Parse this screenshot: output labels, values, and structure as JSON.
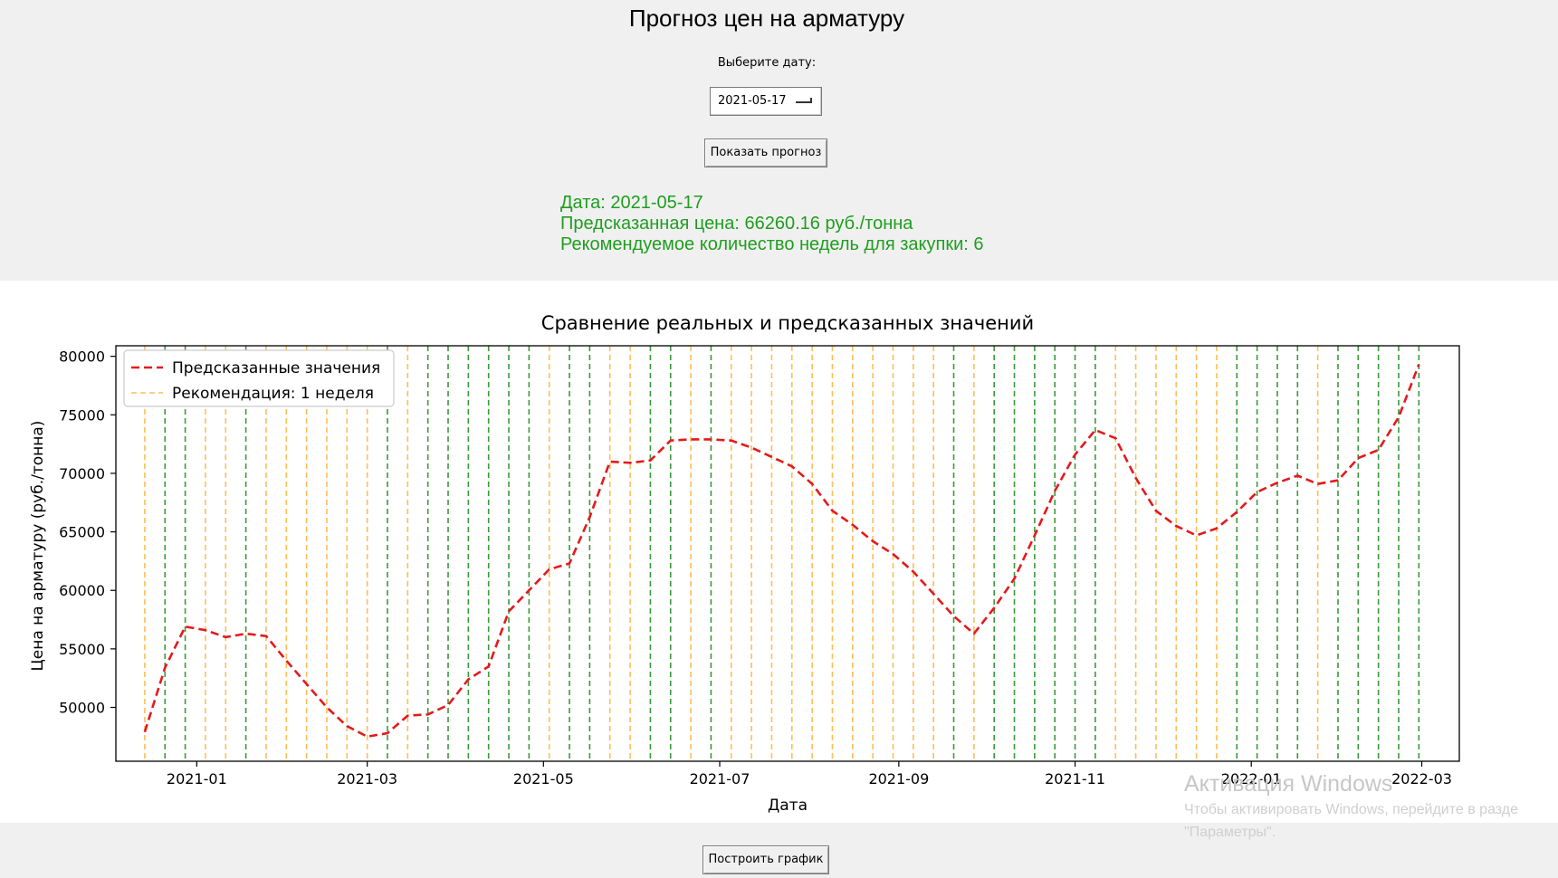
{
  "window": {
    "title": "Прогноз цен на арматуру"
  },
  "form": {
    "date_label": "Выберите дату:",
    "date_value": "2021-05-17",
    "show_button": "Показать прогноз"
  },
  "result": {
    "date_line": "Дата: 2021-05-17",
    "price_line": "Предсказанная цена: 66260.16 руб./тонна",
    "weeks_line": "Рекомендуемое количество недель для закупки: 6",
    "color": "#1f9e1f"
  },
  "footer": {
    "build_button": "Построить график"
  },
  "watermark": {
    "title": "Активация Windows",
    "line1": "Чтобы активировать Windows, перейдите в разде",
    "line2": "\"Параметры\"."
  },
  "chart_data": {
    "type": "line",
    "title": "Сравнение реальных и предсказанных значений",
    "xlabel": "Дата",
    "ylabel": "Цена на арматуру (руб./тонна)",
    "xlim": [
      "2020-12-04",
      "2022-03-14"
    ],
    "ylim": [
      45400,
      80900
    ],
    "x_ticks": [
      "2021-01",
      "2021-03",
      "2021-05",
      "2021-07",
      "2021-09",
      "2021-11",
      "2022-01",
      "2022-03"
    ],
    "y_ticks": [
      50000,
      55000,
      60000,
      65000,
      70000,
      75000,
      80000
    ],
    "legend_position": "upper-left",
    "series": [
      {
        "name": "Предсказанные значения",
        "color": "#e31a1c",
        "style": "dashed",
        "x": [
          "2020-12-14",
          "2020-12-21",
          "2020-12-28",
          "2021-01-04",
          "2021-01-11",
          "2021-01-18",
          "2021-01-25",
          "2021-02-01",
          "2021-02-08",
          "2021-02-15",
          "2021-02-22",
          "2021-03-01",
          "2021-03-08",
          "2021-03-15",
          "2021-03-22",
          "2021-03-29",
          "2021-04-05",
          "2021-04-12",
          "2021-04-19",
          "2021-04-26",
          "2021-05-03",
          "2021-05-10",
          "2021-05-17",
          "2021-05-24",
          "2021-05-31",
          "2021-06-07",
          "2021-06-14",
          "2021-06-21",
          "2021-06-28",
          "2021-07-05",
          "2021-07-12",
          "2021-07-19",
          "2021-07-26",
          "2021-08-02",
          "2021-08-09",
          "2021-08-16",
          "2021-08-23",
          "2021-08-30",
          "2021-09-06",
          "2021-09-13",
          "2021-09-20",
          "2021-09-27",
          "2021-10-04",
          "2021-10-11",
          "2021-10-18",
          "2021-10-25",
          "2021-11-01",
          "2021-11-08",
          "2021-11-15",
          "2021-11-22",
          "2021-11-29",
          "2021-12-06",
          "2021-12-13",
          "2021-12-20",
          "2021-12-27",
          "2022-01-03",
          "2022-01-10",
          "2022-01-17",
          "2022-01-24",
          "2022-01-31",
          "2022-02-07",
          "2022-02-14",
          "2022-02-21",
          "2022-02-28"
        ],
        "y": [
          47900,
          53400,
          56900,
          56600,
          56000,
          56300,
          56100,
          54000,
          52000,
          50000,
          48400,
          47500,
          47800,
          49300,
          49400,
          50200,
          52400,
          53500,
          58200,
          60000,
          61800,
          62300,
          66260,
          71000,
          70900,
          71100,
          72800,
          72900,
          72900,
          72800,
          72200,
          71400,
          70600,
          69100,
          66800,
          65600,
          64200,
          63100,
          61600,
          59700,
          57800,
          56300,
          58500,
          61000,
          64700,
          68500,
          71600,
          73700,
          73000,
          69600,
          66800,
          65500,
          64700,
          65300,
          66700,
          68400,
          69200,
          69800,
          69100,
          69400,
          71300,
          72000,
          74800,
          79300
        ]
      },
      {
        "name": "Рекомендация: 1 неделя",
        "color": "#ffbe55",
        "style": "dashed-vertical"
      },
      {
        "color": "#3a9a3a",
        "style": "dashed-vertical"
      }
    ],
    "recommendation_flags": [
      1,
      0,
      0,
      1,
      1,
      0,
      1,
      1,
      1,
      1,
      1,
      1,
      0,
      1,
      0,
      0,
      0,
      0,
      0,
      0,
      1,
      0,
      0,
      1,
      1,
      0,
      0,
      1,
      0,
      1,
      1,
      1,
      1,
      1,
      1,
      1,
      1,
      1,
      1,
      1,
      0,
      1,
      0,
      0,
      0,
      0,
      0,
      0,
      1,
      1,
      1,
      1,
      1,
      1,
      0,
      0,
      0,
      0,
      1,
      0,
      0,
      0,
      0,
      0
    ]
  }
}
